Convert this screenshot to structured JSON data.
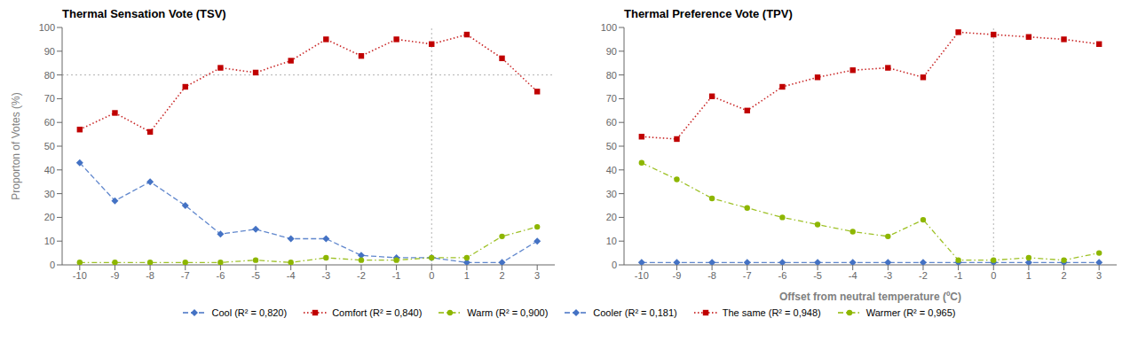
{
  "chart_data": [
    {
      "type": "line",
      "title": "Thermal Sensation Vote (TSV)",
      "y_label": "Proporton of Votes (%)",
      "x": [
        -10,
        -9,
        -8,
        -7,
        -6,
        -5,
        -4,
        -3,
        -2,
        -1,
        0,
        1,
        2,
        3
      ],
      "series": [
        {
          "name": "Cool (R² = 0,820)",
          "color": "#4472C4",
          "marker": "diamond",
          "line_style": "dashed",
          "values": [
            43,
            27,
            35,
            25,
            13,
            15,
            11,
            11,
            4,
            3,
            3,
            1,
            1,
            10
          ]
        },
        {
          "name": "Comfort (R² = 0,840)",
          "color": "#C00000",
          "marker": "square",
          "line_style": "dotted",
          "values": [
            57,
            64,
            56,
            75,
            83,
            81,
            86,
            95,
            88,
            95,
            93,
            97,
            87,
            73
          ]
        },
        {
          "name": "Warm (R² = 0,900)",
          "color": "#8DB600",
          "marker": "circle",
          "line_style": "dashdot",
          "values": [
            1,
            1,
            1,
            1,
            1,
            2,
            1,
            3,
            2,
            2,
            3,
            3,
            12,
            16
          ]
        }
      ],
      "xlim": [
        -10.5,
        3.5
      ],
      "xticks": [
        -10,
        -9,
        -8,
        -7,
        -6,
        -5,
        -4,
        -3,
        -2,
        -1,
        0,
        1,
        2,
        3
      ],
      "ylim": [
        0,
        100
      ],
      "yticks": [
        0,
        10,
        20,
        30,
        40,
        50,
        60,
        70,
        80,
        90,
        100
      ],
      "hline": 80,
      "vline": 0,
      "grid": false,
      "legend": "bottom"
    },
    {
      "type": "line",
      "title": "Thermal Preference Vote (TPV)",
      "x_label": "Offset from neutral temperature (ºC)",
      "x": [
        -10,
        -9,
        -8,
        -7,
        -6,
        -5,
        -4,
        -3,
        -2,
        -1,
        0,
        1,
        2,
        3
      ],
      "series": [
        {
          "name": "Cooler (R² = 0,181)",
          "color": "#4472C4",
          "marker": "diamond",
          "line_style": "dashed",
          "values": [
            1,
            1,
            1,
            1,
            1,
            1,
            1,
            1,
            1,
            1,
            1,
            1,
            1,
            1
          ]
        },
        {
          "name": "The same (R² = 0,948)",
          "color": "#C00000",
          "marker": "square",
          "line_style": "dotted",
          "values": [
            54,
            53,
            71,
            65,
            75,
            79,
            82,
            83,
            79,
            98,
            97,
            96,
            95,
            93
          ]
        },
        {
          "name": "Warmer (R² = 0,965)",
          "color": "#8DB600",
          "marker": "circle",
          "line_style": "dashdot",
          "values": [
            43,
            36,
            28,
            24,
            20,
            17,
            14,
            12,
            19,
            2,
            2,
            3,
            2,
            5
          ]
        }
      ],
      "xlim": [
        -10.5,
        3.5
      ],
      "xticks": [
        -10,
        -9,
        -8,
        -7,
        -6,
        -5,
        -4,
        -3,
        -2,
        -1,
        0,
        1,
        2,
        3
      ],
      "ylim": [
        0,
        100
      ],
      "yticks": [
        0,
        10,
        20,
        30,
        40,
        50,
        60,
        70,
        80,
        90,
        100
      ],
      "hline": 0,
      "vline": 0,
      "grid": false,
      "legend": "bottom"
    }
  ]
}
